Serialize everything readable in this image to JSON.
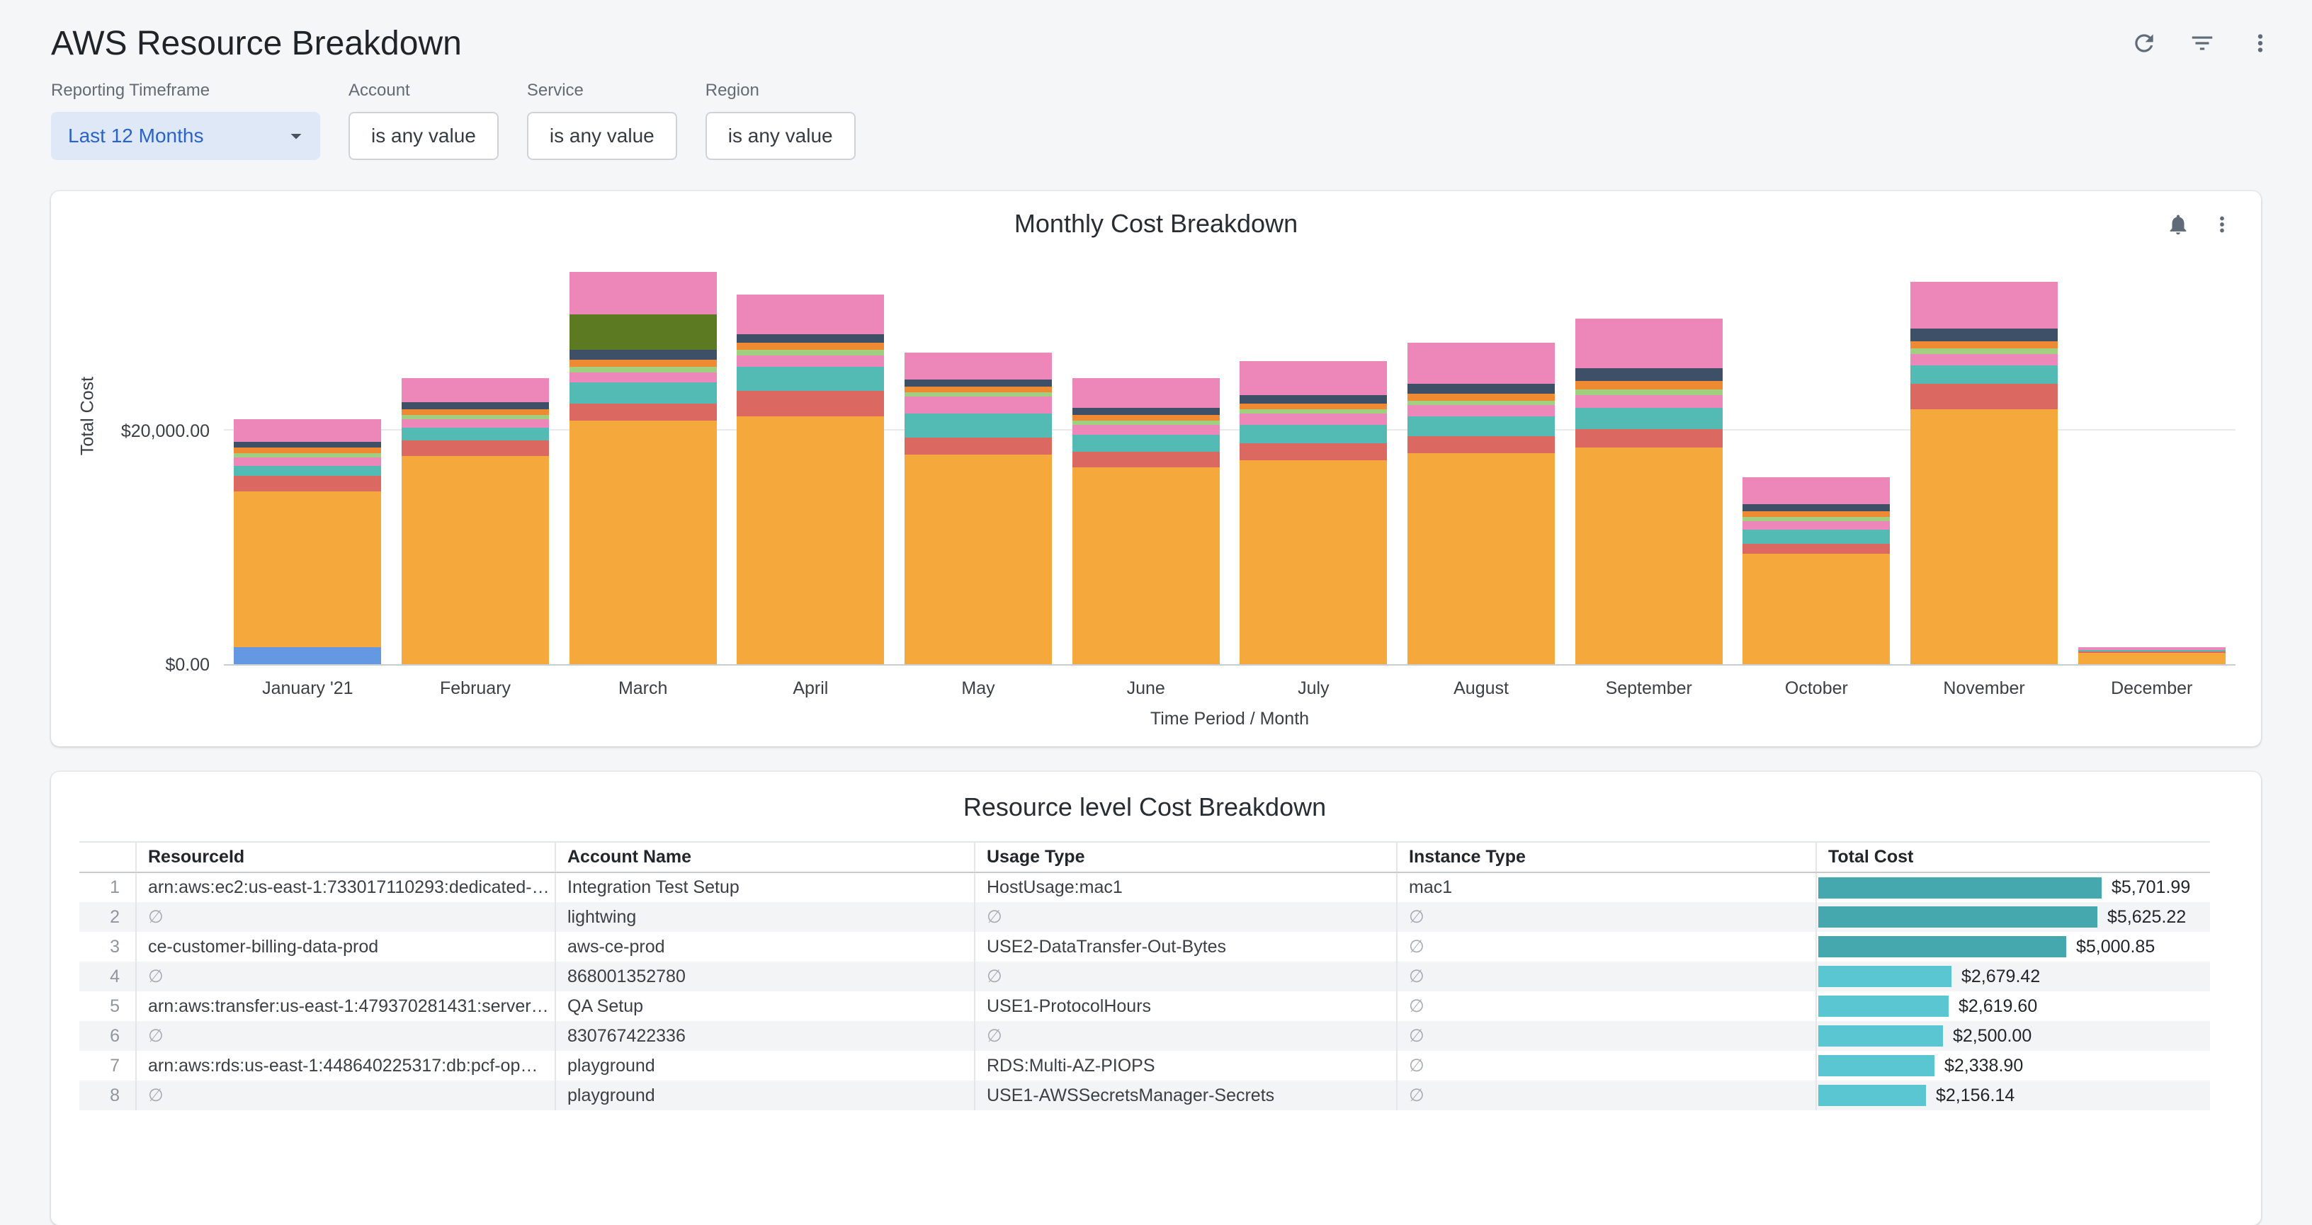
{
  "page": {
    "title": "AWS Resource Breakdown"
  },
  "header": {
    "actions": [
      {
        "icon": "refresh-icon"
      },
      {
        "icon": "filter-icon"
      },
      {
        "icon": "kebab-menu-icon"
      }
    ]
  },
  "filters": {
    "timeframe": {
      "label": "Reporting Timeframe",
      "value": "Last 12 Months"
    },
    "items": [
      {
        "label": "Account",
        "value": "is any value"
      },
      {
        "label": "Service",
        "value": "is any value"
      },
      {
        "label": "Region",
        "value": "is any value"
      }
    ]
  },
  "chart_card": {
    "title": "Monthly Cost Breakdown"
  },
  "chart_data": {
    "type": "bar",
    "stacked": true,
    "title": "Monthly Cost Breakdown",
    "xlabel": "Time Period / Month",
    "ylabel": "Total Cost",
    "ylim": [
      0,
      35000
    ],
    "legend": "none",
    "grid": "horizontal",
    "yticks": [
      {
        "value": 0,
        "label": "$0.00"
      },
      {
        "value": 20000,
        "label": "$20,000.00"
      }
    ],
    "categories": [
      "January '21",
      "February",
      "March",
      "April",
      "May",
      "June",
      "July",
      "August",
      "September",
      "October",
      "November",
      "December"
    ],
    "palette": {
      "yellow": "#F5A83C",
      "blue": "#6598E2",
      "red": "#DC6862",
      "teal": "#54BBB4",
      "pink": "#ED87B9",
      "lightgreen": "#9FCF7F",
      "orange": "#EF8A33",
      "navy": "#3D5068",
      "olive": "#5C7A22"
    },
    "bars": [
      {
        "month": "January '21",
        "total": 20900,
        "segments": [
          [
            "blue",
            1500
          ],
          [
            "yellow",
            13300
          ],
          [
            "red",
            1300
          ],
          [
            "teal",
            900
          ],
          [
            "pink",
            700
          ],
          [
            "lightgreen",
            350
          ],
          [
            "orange",
            450
          ],
          [
            "navy",
            500
          ],
          [
            "pink",
            1900
          ]
        ]
      },
      {
        "month": "February",
        "total": 24300,
        "segments": [
          [
            "yellow",
            17800
          ],
          [
            "red",
            1300
          ],
          [
            "teal",
            1100
          ],
          [
            "pink",
            700
          ],
          [
            "lightgreen",
            350
          ],
          [
            "orange",
            450
          ],
          [
            "navy",
            550
          ],
          [
            "pink",
            2050
          ]
        ]
      },
      {
        "month": "March",
        "total": 33400,
        "segments": [
          [
            "yellow",
            20800
          ],
          [
            "red",
            1500
          ],
          [
            "teal",
            1800
          ],
          [
            "pink",
            900
          ],
          [
            "lightgreen",
            450
          ],
          [
            "orange",
            550
          ],
          [
            "navy",
            800
          ],
          [
            "olive",
            3000
          ],
          [
            "pink",
            3600
          ]
        ]
      },
      {
        "month": "April",
        "total": 31600,
        "segments": [
          [
            "yellow",
            21200
          ],
          [
            "red",
            2200
          ],
          [
            "teal",
            2000
          ],
          [
            "pink",
            1000
          ],
          [
            "lightgreen",
            450
          ],
          [
            "orange",
            650
          ],
          [
            "navy",
            700
          ],
          [
            "pink",
            3400
          ]
        ]
      },
      {
        "month": "May",
        "total": 26600,
        "segments": [
          [
            "yellow",
            17900
          ],
          [
            "red",
            1500
          ],
          [
            "teal",
            2000
          ],
          [
            "pink",
            1400
          ],
          [
            "lightgreen",
            400
          ],
          [
            "orange",
            500
          ],
          [
            "navy",
            600
          ],
          [
            "pink",
            2300
          ]
        ]
      },
      {
        "month": "June",
        "total": 24700,
        "segments": [
          [
            "yellow",
            16900
          ],
          [
            "red",
            1300
          ],
          [
            "teal",
            1500
          ],
          [
            "pink",
            900
          ],
          [
            "lightgreen",
            400
          ],
          [
            "orange",
            500
          ],
          [
            "navy",
            600
          ],
          [
            "pink",
            2600
          ]
        ]
      },
      {
        "month": "July",
        "total": 26000,
        "segments": [
          [
            "yellow",
            17500
          ],
          [
            "red",
            1400
          ],
          [
            "teal",
            1600
          ],
          [
            "pink",
            1000
          ],
          [
            "lightgreen",
            400
          ],
          [
            "orange",
            500
          ],
          [
            "navy",
            700
          ],
          [
            "pink",
            2900
          ]
        ]
      },
      {
        "month": "August",
        "total": 27600,
        "segments": [
          [
            "yellow",
            18100
          ],
          [
            "red",
            1500
          ],
          [
            "teal",
            1700
          ],
          [
            "pink",
            1000
          ],
          [
            "lightgreen",
            400
          ],
          [
            "orange",
            600
          ],
          [
            "navy",
            800
          ],
          [
            "pink",
            3500
          ]
        ]
      },
      {
        "month": "September",
        "total": 29700,
        "segments": [
          [
            "yellow",
            18600
          ],
          [
            "red",
            1600
          ],
          [
            "teal",
            1800
          ],
          [
            "pink",
            1100
          ],
          [
            "lightgreen",
            500
          ],
          [
            "orange",
            700
          ],
          [
            "navy",
            1100
          ],
          [
            "pink",
            4300
          ]
        ]
      },
      {
        "month": "October",
        "total": 16000,
        "segments": [
          [
            "yellow",
            9400
          ],
          [
            "red",
            900
          ],
          [
            "teal",
            1200
          ],
          [
            "pink",
            700
          ],
          [
            "lightgreen",
            400
          ],
          [
            "orange",
            500
          ],
          [
            "navy",
            600
          ],
          [
            "pink",
            2300
          ]
        ]
      },
      {
        "month": "November",
        "total": 32800,
        "segments": [
          [
            "yellow",
            21800
          ],
          [
            "red",
            2200
          ],
          [
            "teal",
            1600
          ],
          [
            "pink",
            1000
          ],
          [
            "lightgreen",
            500
          ],
          [
            "orange",
            600
          ],
          [
            "navy",
            1100
          ],
          [
            "pink",
            4000
          ]
        ]
      },
      {
        "month": "December",
        "total": 1500,
        "segments": [
          [
            "yellow",
            1000
          ],
          [
            "red",
            150
          ],
          [
            "teal",
            150
          ],
          [
            "pink",
            200
          ]
        ]
      }
    ]
  },
  "table_card": {
    "title": "Resource level Cost Breakdown",
    "columns": [
      "ResourceId",
      "Account Name",
      "Usage Type",
      "Instance Type",
      "Total Cost"
    ],
    "null_symbol": "∅",
    "bar_max_value": 5701.99,
    "rows": [
      {
        "index": 1,
        "resource_id": "arn:aws:ec2:us-east-1:733017110293:dedicated-…",
        "account_name": "Integration Test Setup",
        "usage_type": "HostUsage:mac1",
        "instance_type": "mac1",
        "total_cost": "$5,701.99",
        "value": 5701.99,
        "bar_color": "#45A8AE"
      },
      {
        "index": 2,
        "resource_id": null,
        "account_name": "lightwing",
        "usage_type": null,
        "instance_type": null,
        "total_cost": "$5,625.22",
        "value": 5625.22,
        "bar_color": "#45A8AE"
      },
      {
        "index": 3,
        "resource_id": "ce-customer-billing-data-prod",
        "account_name": "aws-ce-prod",
        "usage_type": "USE2-DataTransfer-Out-Bytes",
        "instance_type": null,
        "total_cost": "$5,000.85",
        "value": 5000.85,
        "bar_color": "#45A8AE"
      },
      {
        "index": 4,
        "resource_id": null,
        "account_name": "868001352780",
        "usage_type": null,
        "instance_type": null,
        "total_cost": "$2,679.42",
        "value": 2679.42,
        "bar_color": "#59C6D2"
      },
      {
        "index": 5,
        "resource_id": "arn:aws:transfer:us-east-1:479370281431:server…",
        "account_name": "QA Setup",
        "usage_type": "USE1-ProtocolHours",
        "instance_type": null,
        "total_cost": "$2,619.60",
        "value": 2619.6,
        "bar_color": "#59C6D2"
      },
      {
        "index": 6,
        "resource_id": null,
        "account_name": "830767422336",
        "usage_type": null,
        "instance_type": null,
        "total_cost": "$2,500.00",
        "value": 2500.0,
        "bar_color": "#59C6D2"
      },
      {
        "index": 7,
        "resource_id": "arn:aws:rds:us-east-1:448640225317:db:pcf-op…",
        "account_name": "playground",
        "usage_type": "RDS:Multi-AZ-PIOPS",
        "instance_type": null,
        "total_cost": "$2,338.90",
        "value": 2338.9,
        "bar_color": "#59C6D2"
      },
      {
        "index": 8,
        "resource_id": null,
        "account_name": "playground",
        "usage_type": "USE1-AWSSecretsManager-Secrets",
        "instance_type": null,
        "total_cost": "$2,156.14",
        "value": 2156.14,
        "bar_color": "#59C6D2"
      }
    ]
  }
}
